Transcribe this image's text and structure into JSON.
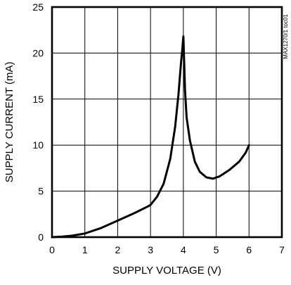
{
  "chart_data": {
    "type": "line",
    "title": "",
    "xlabel": "SUPPLY VOLTAGE (V)",
    "ylabel": "SUPPLY CURRENT (mA)",
    "side_label": "MAX1270/1 toc01",
    "xlim": [
      0,
      7
    ],
    "ylim": [
      0,
      25
    ],
    "x_ticks": [
      "0",
      "1",
      "2",
      "3",
      "4",
      "5",
      "6",
      "7"
    ],
    "y_ticks": [
      "0",
      "5",
      "10",
      "15",
      "20",
      "25"
    ],
    "grid": true,
    "series": [
      {
        "points": [
          [
            0.0,
            0.0
          ],
          [
            0.3,
            0.05
          ],
          [
            0.6,
            0.15
          ],
          [
            1.0,
            0.4
          ],
          [
            1.5,
            1.0
          ],
          [
            2.0,
            1.8
          ],
          [
            2.5,
            2.6
          ],
          [
            2.9,
            3.3
          ],
          [
            3.0,
            3.5
          ],
          [
            3.2,
            4.4
          ],
          [
            3.4,
            5.8
          ],
          [
            3.6,
            8.5
          ],
          [
            3.75,
            12.0
          ],
          [
            3.85,
            15.5
          ],
          [
            3.93,
            19.0
          ],
          [
            3.97,
            20.5
          ],
          [
            4.0,
            21.8
          ],
          [
            4.05,
            16.0
          ],
          [
            4.1,
            13.0
          ],
          [
            4.2,
            10.5
          ],
          [
            4.35,
            8.2
          ],
          [
            4.5,
            7.1
          ],
          [
            4.7,
            6.5
          ],
          [
            4.9,
            6.35
          ],
          [
            5.1,
            6.6
          ],
          [
            5.4,
            7.3
          ],
          [
            5.7,
            8.2
          ],
          [
            5.9,
            9.2
          ],
          [
            6.0,
            10.0
          ]
        ]
      }
    ]
  }
}
